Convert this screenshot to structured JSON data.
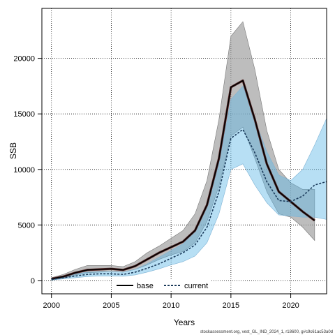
{
  "chart_data": {
    "type": "line",
    "title": "",
    "xlabel": "Years",
    "ylabel": "SSB",
    "xlim": [
      1999.2,
      2023
    ],
    "ylim": [
      -1200,
      24500
    ],
    "xticks": [
      2000,
      2005,
      2010,
      2015,
      2020
    ],
    "yticks": [
      0,
      5000,
      10000,
      15000,
      20000
    ],
    "grid": true,
    "legend": "bottom-center",
    "source_note": "stockassessment.org, vest_GL_IND_2024_1, r18600, g#c9c61ac53a0d",
    "series": [
      {
        "name": "base",
        "style": "solid",
        "color": "#000000",
        "band_color": "#999999",
        "x": [
          2000,
          2001,
          2002,
          2003,
          2004,
          2005,
          2006,
          2007,
          2008,
          2009,
          2010,
          2011,
          2012,
          2013,
          2014,
          2015,
          2016,
          2017,
          2018,
          2019,
          2020,
          2021,
          2022
        ],
        "values": [
          150,
          350,
          700,
          950,
          1000,
          1050,
          950,
          1300,
          1900,
          2500,
          3000,
          3500,
          4500,
          6800,
          11000,
          17400,
          18000,
          14500,
          10500,
          8000,
          7100,
          6200,
          5400
        ],
        "lower": [
          50,
          200,
          500,
          700,
          750,
          800,
          750,
          1000,
          1400,
          1900,
          2300,
          2600,
          3400,
          5300,
          8500,
          13000,
          13800,
          11000,
          8000,
          6000,
          5700,
          4800,
          3600
        ],
        "upper": [
          250,
          550,
          1000,
          1350,
          1350,
          1350,
          1250,
          1700,
          2500,
          3100,
          3800,
          4500,
          6000,
          9000,
          14500,
          22000,
          23300,
          19000,
          13500,
          10000,
          8800,
          8200,
          8200
        ]
      },
      {
        "name": "current",
        "style": "dashed",
        "color": "#1a3a5a",
        "band_color": "#5fb8e6",
        "x": [
          2000,
          2001,
          2002,
          2003,
          2004,
          2005,
          2006,
          2007,
          2008,
          2009,
          2010,
          2011,
          2012,
          2013,
          2014,
          2015,
          2016,
          2017,
          2018,
          2019,
          2020,
          2021,
          2022,
          2023
        ],
        "values": [
          100,
          250,
          400,
          550,
          600,
          600,
          550,
          750,
          1100,
          1500,
          2000,
          2500,
          3200,
          4800,
          8000,
          12800,
          13600,
          11500,
          8900,
          7200,
          7100,
          7600,
          8600,
          8900
        ],
        "lower": [
          30,
          150,
          250,
          350,
          400,
          400,
          380,
          500,
          750,
          1050,
          1400,
          1700,
          2200,
          3400,
          6000,
          10000,
          10500,
          8600,
          7000,
          5900,
          5800,
          5700,
          5700,
          5500
        ],
        "upper": [
          200,
          400,
          600,
          750,
          800,
          800,
          750,
          1000,
          1500,
          2100,
          2700,
          3300,
          4400,
          6700,
          10500,
          16300,
          17500,
          14500,
          11600,
          9500,
          9000,
          10000,
          12200,
          14600
        ]
      }
    ]
  }
}
